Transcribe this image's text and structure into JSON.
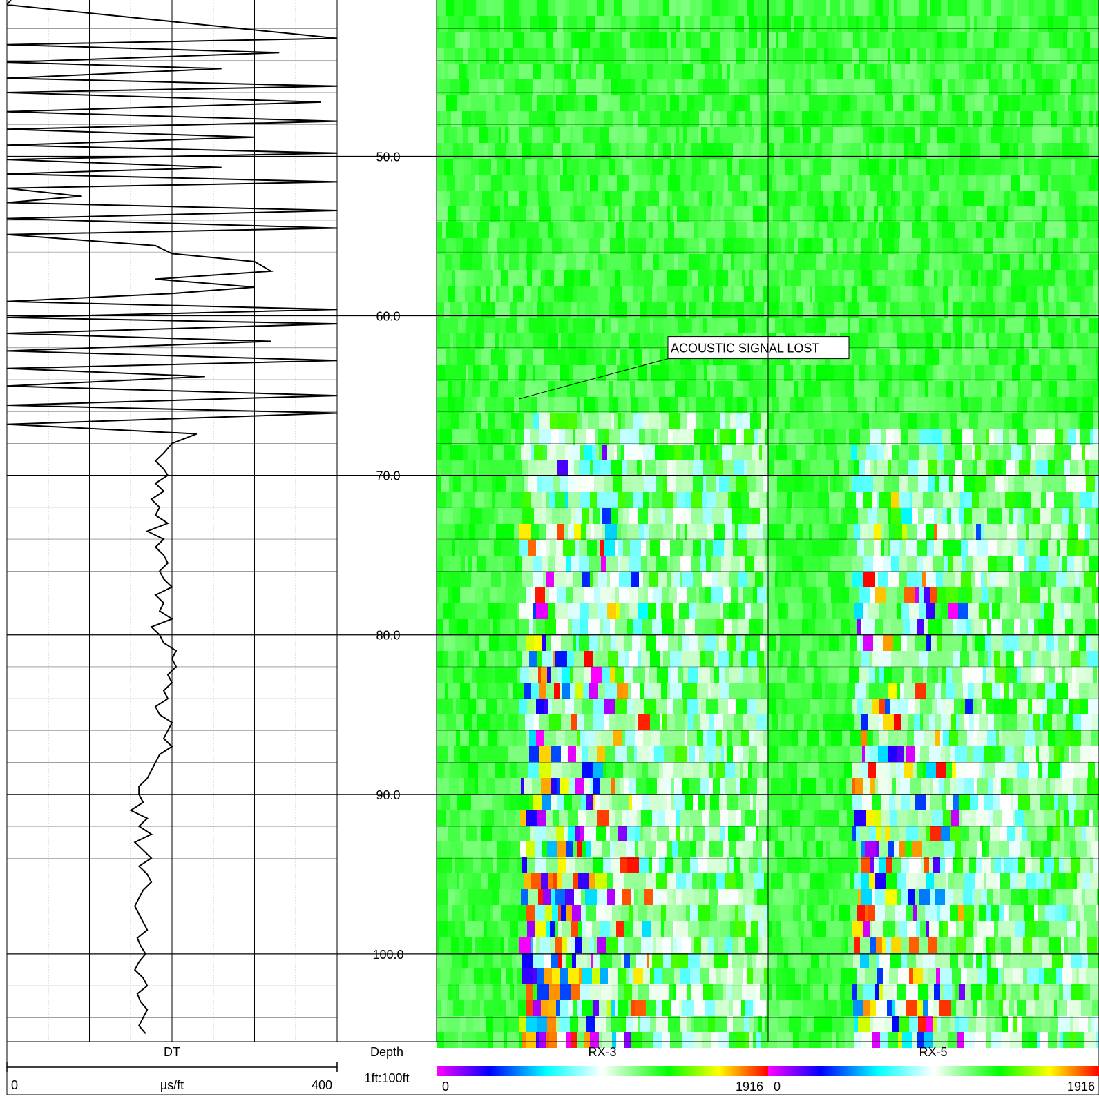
{
  "chart_data": {
    "type": "well_log",
    "depth": {
      "range": [
        40.2,
        105.5
      ],
      "tick_labels": [
        "50.0",
        "60.0",
        "70.0",
        "80.0",
        "90.0",
        "100.0"
      ],
      "tick_values": [
        50,
        60,
        70,
        80,
        90,
        100
      ],
      "header": "Depth",
      "scale": "1ft:100ft"
    },
    "tracks": [
      {
        "id": "dt",
        "type": "curve",
        "name": "DT",
        "unit": "µs/ft",
        "min_label": "0",
        "max_label": "400",
        "range": [
          0,
          400
        ],
        "grid_divisions": 8,
        "series_depth": [
          40.2,
          40.5,
          42.6,
          43.0,
          43.5,
          44.1,
          44.5,
          45.1,
          45.6,
          46.0,
          46.6,
          47.2,
          47.8,
          48.3,
          48.8,
          49.3,
          49.8,
          50.2,
          50.7,
          51.1,
          51.6,
          52.0,
          52.5,
          52.9,
          53.4,
          53.9,
          54.5,
          54.9,
          55.6,
          56.1,
          56.6,
          57.2,
          57.7,
          58.2,
          58.6,
          59.1,
          59.6,
          60.1,
          60.5,
          61.1,
          61.6,
          62.2,
          62.8,
          63.3,
          63.8,
          64.4,
          65.0,
          65.6,
          66.1,
          66.8,
          67.4,
          68.0,
          68.6,
          69.1,
          69.6,
          70.0,
          70.5,
          71.0,
          71.5,
          72.0,
          72.5,
          73.0,
          73.5,
          74.0,
          74.5,
          75.0,
          75.5,
          76.0,
          76.5,
          77.0,
          77.5,
          78.0,
          78.5,
          79.0,
          79.5,
          80.0,
          80.5,
          81.0,
          81.5,
          82.0,
          82.5,
          83.0,
          83.5,
          84.0,
          84.5,
          85.0,
          85.5,
          86.0,
          86.5,
          87.0,
          87.5,
          88.0,
          88.5,
          89.0,
          89.5,
          90.0,
          90.5,
          91.0,
          91.5,
          92.0,
          92.5,
          93.0,
          93.5,
          94.0,
          94.5,
          95.0,
          95.5,
          96.0,
          96.5,
          97.0,
          97.5,
          98.0,
          98.5,
          99.0,
          99.5,
          100.0,
          100.5,
          101.0,
          101.5,
          102.0,
          102.5,
          103.0,
          103.5,
          104.0,
          104.5,
          105.0
        ],
        "series_values": [
          5,
          0,
          400,
          0,
          330,
          0,
          260,
          0,
          400,
          0,
          380,
          0,
          400,
          0,
          300,
          0,
          400,
          0,
          260,
          0,
          400,
          0,
          90,
          0,
          400,
          0,
          400,
          0,
          180,
          200,
          300,
          320,
          180,
          300,
          200,
          0,
          400,
          0,
          400,
          0,
          320,
          0,
          400,
          0,
          240,
          0,
          400,
          0,
          400,
          0,
          230,
          200,
          190,
          180,
          190,
          195,
          180,
          190,
          175,
          185,
          180,
          195,
          170,
          190,
          180,
          190,
          195,
          185,
          190,
          200,
          180,
          190,
          185,
          200,
          175,
          185,
          190,
          205,
          200,
          205,
          195,
          200,
          190,
          195,
          180,
          185,
          200,
          195,
          190,
          200,
          185,
          180,
          175,
          170,
          160,
          160,
          165,
          150,
          170,
          160,
          175,
          155,
          165,
          175,
          160,
          170,
          175,
          165,
          160,
          155,
          160,
          165,
          170,
          158,
          162,
          168,
          160,
          155,
          165,
          170,
          158,
          162,
          170,
          165,
          160,
          168
        ]
      },
      {
        "id": "rx3",
        "type": "waveform_image",
        "name": "RX-3",
        "colorbar_min": "0",
        "colorbar_max": "1916",
        "annotation": {
          "text": "ACOUSTIC SIGNAL LOST",
          "depth": 65.2
        },
        "signal_onset_depth": 65.2
      },
      {
        "id": "rx5",
        "type": "waveform_image",
        "name": "RX-5",
        "colorbar_min": "0",
        "colorbar_max": "1916",
        "signal_onset_depth": 66.5
      }
    ],
    "colormap": [
      "#ff00ff",
      "#0000ff",
      "#00ffff",
      "#ffffff",
      "#00ff00",
      "#ffff00",
      "#ff0000"
    ],
    "grid": true
  }
}
